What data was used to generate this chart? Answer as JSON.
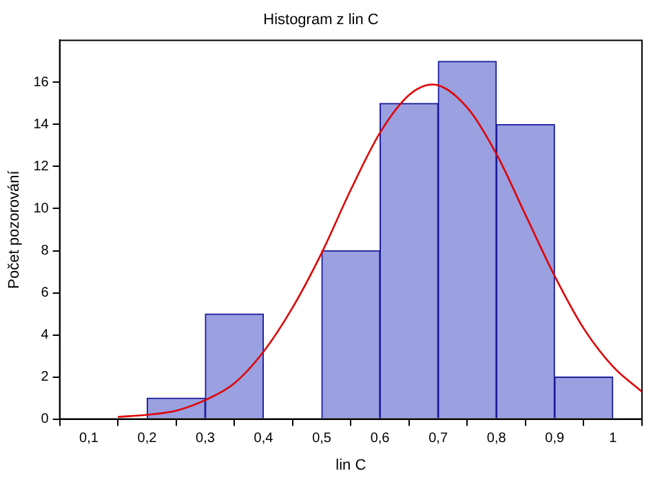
{
  "chart_data": {
    "type": "histogram",
    "title": "Histogram z lin C",
    "xlabel": "lin C",
    "ylabel": "Počet pozorování",
    "series": [
      {
        "color": "#9aa0e0",
        "bins": [
          0.2,
          0.3,
          0.4,
          0.5,
          0.6,
          0.7,
          0.8,
          0.9,
          1.0
        ],
        "values": [
          1,
          5,
          0,
          8,
          15,
          17,
          14,
          2
        ]
      },
      {
        "type": "line",
        "color": "#e00000",
        "x": [
          0.15,
          0.2,
          0.25,
          0.3,
          0.35,
          0.4,
          0.45,
          0.5,
          0.55,
          0.6,
          0.65,
          0.69,
          0.75,
          0.8,
          0.85,
          0.9,
          0.95,
          1.0,
          1.05
        ],
        "values": [
          0.1,
          0.2,
          0.4,
          0.9,
          1.7,
          3.2,
          5.3,
          7.9,
          10.9,
          13.6,
          15.4,
          15.9,
          14.8,
          12.6,
          9.7,
          6.8,
          4.3,
          2.5,
          1.3
        ]
      }
    ],
    "xlim": [
      0.05,
      1.05
    ],
    "xticks": [
      {
        "value": 0.1,
        "label": "0,1"
      },
      {
        "value": 0.2,
        "label": "0,2"
      },
      {
        "value": 0.3,
        "label": "0,3"
      },
      {
        "value": 0.4,
        "label": "0,4"
      },
      {
        "value": 0.5,
        "label": "0,5"
      },
      {
        "value": 0.6,
        "label": "0,6"
      },
      {
        "value": 0.7,
        "label": "0,7"
      },
      {
        "value": 0.8,
        "label": "0,8"
      },
      {
        "value": 0.9,
        "label": "0,9"
      },
      {
        "value": 1,
        "label": "1"
      }
    ],
    "ylim": [
      0,
      18
    ],
    "yticks": [
      0,
      2,
      4,
      6,
      8,
      10,
      12,
      14,
      16
    ],
    "grid": false,
    "marker": "none"
  }
}
